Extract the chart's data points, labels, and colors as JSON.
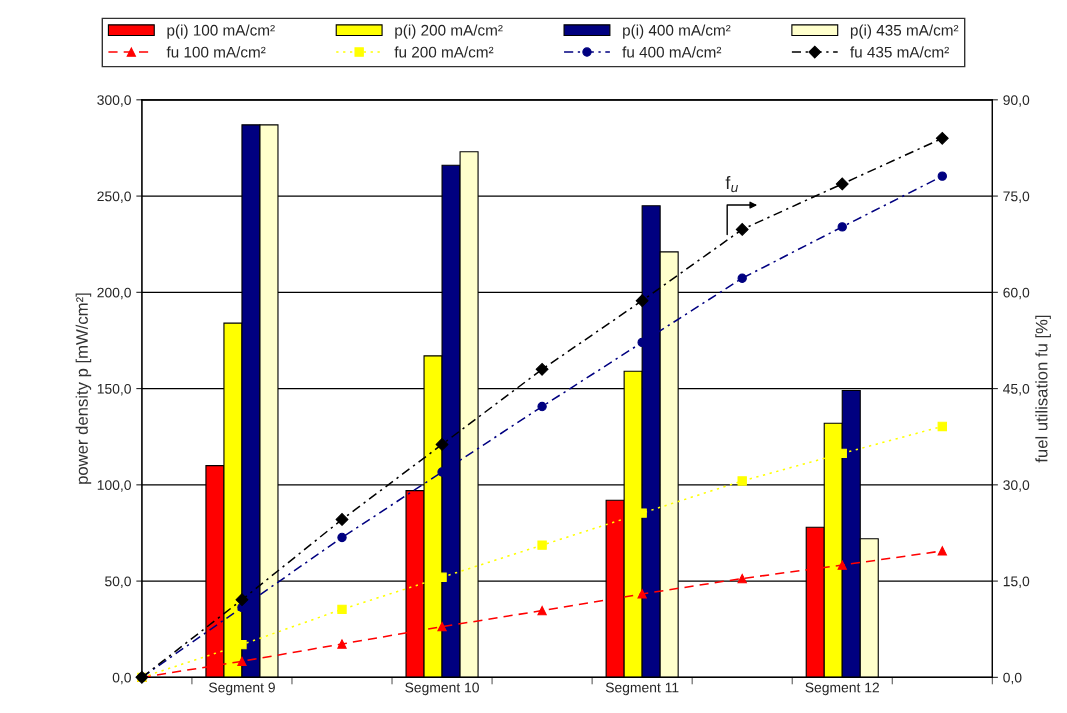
{
  "chart_data": {
    "type": "bar",
    "categories": [
      null,
      "Segment 9",
      null,
      "Segment 10",
      null,
      "Segment 11",
      null,
      "Segment 12",
      null
    ],
    "ylabel": "power density p [mW/cm²]",
    "y2label": "fuel utilisation fu [%]",
    "ylim": [
      0,
      300
    ],
    "yticks": [
      {
        "value": 0,
        "label": "0,0"
      },
      {
        "value": 50,
        "label": "50,0"
      },
      {
        "value": 100,
        "label": "100,0"
      },
      {
        "value": 150,
        "label": "150,0"
      },
      {
        "value": 200,
        "label": "200,0"
      },
      {
        "value": 250,
        "label": "250,0"
      },
      {
        "value": 300,
        "label": "300,0"
      }
    ],
    "y2lim": [
      0,
      90
    ],
    "y2ticks": [
      {
        "value": 0,
        "label": "0,0"
      },
      {
        "value": 15,
        "label": "15,0"
      },
      {
        "value": 30,
        "label": "30,0"
      },
      {
        "value": 45,
        "label": "45,0"
      },
      {
        "value": 60,
        "label": "60,0"
      },
      {
        "value": 75,
        "label": "75,0"
      },
      {
        "value": 90,
        "label": "90,0"
      }
    ],
    "grid": "y",
    "legend": "top",
    "annotations": [
      "f$_{u}$"
    ],
    "series": [
      {
        "name": "p(i) 100 mA/cm²",
        "color": "#ff0000",
        "values": [
          null,
          110,
          null,
          97,
          null,
          92,
          null,
          78,
          null
        ]
      },
      {
        "name": "p(i) 200 mA/cm²",
        "color": "#ffff00",
        "values": [
          null,
          184,
          null,
          167,
          null,
          159,
          null,
          132,
          null
        ]
      },
      {
        "name": "p(i) 400 mA/cm²",
        "color": "#000080",
        "values": [
          null,
          287,
          null,
          266,
          null,
          245,
          null,
          149,
          null
        ]
      },
      {
        "name": "p(i) 435 mA/cm²",
        "color": "#ffffcc",
        "values": [
          null,
          287,
          null,
          273,
          null,
          221,
          null,
          72,
          null
        ]
      },
      {
        "name": "fu 100 mA/cm²",
        "type": "line",
        "axis": "y2",
        "color": "#ff0000",
        "marker": "triangle",
        "line_style": "dashed",
        "values": [
          0,
          2.5,
          5.2,
          7.9,
          10.4,
          13.0,
          15.4,
          17.5,
          19.7
        ]
      },
      {
        "name": "fu 200 mA/cm²",
        "type": "line",
        "axis": "y2",
        "color": "#ffff00",
        "marker": "square",
        "line_style": "dotted",
        "values": [
          0,
          5.1,
          10.6,
          15.6,
          20.6,
          25.6,
          30.6,
          34.9,
          39.1
        ]
      },
      {
        "name": "fu 400 mA/cm²",
        "type": "line",
        "axis": "y2",
        "color": "#000080",
        "marker": "circle",
        "line_style": "dashdot",
        "values": [
          0,
          10.9,
          21.8,
          32.0,
          42.2,
          52.2,
          62.2,
          70.2,
          78.1
        ]
      },
      {
        "name": "fu 435 mA/cm²",
        "type": "line",
        "axis": "y2",
        "color": "#000000",
        "marker": "diamond",
        "line_style": "dashdot",
        "values": [
          0,
          12.1,
          24.6,
          36.3,
          48.0,
          58.7,
          69.8,
          76.9,
          84.0
        ]
      }
    ]
  }
}
